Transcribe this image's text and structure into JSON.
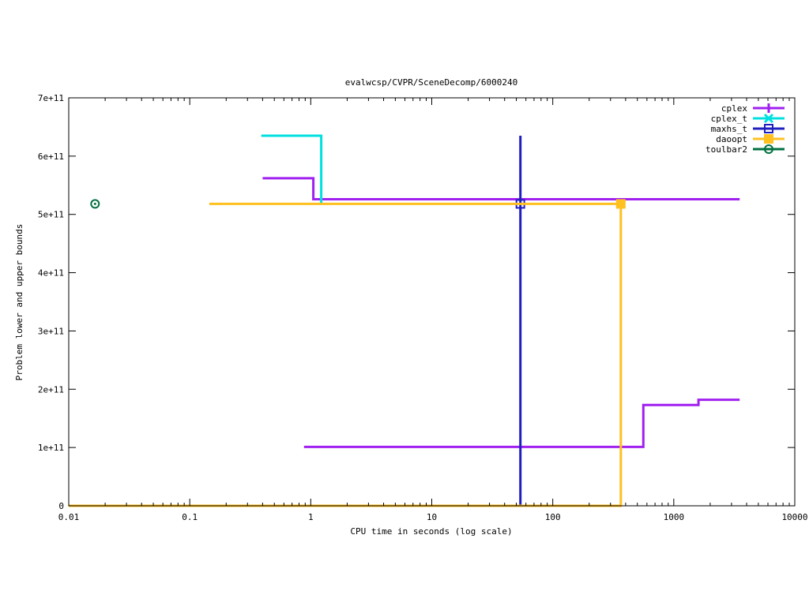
{
  "chart_data": {
    "type": "line",
    "title": "evalwcsp/CVPR/SceneDecomp/6000240",
    "xlabel": "CPU time in seconds (log scale)",
    "ylabel": "Problem lower and upper bounds",
    "xscale": "log",
    "xlim": [
      0.01,
      10000
    ],
    "ylim": [
      0,
      700000000000
    ],
    "grid": false,
    "legend_position": "top-right",
    "x_ticks": [
      {
        "value": 0.01,
        "label": "0.01"
      },
      {
        "value": 0.1,
        "label": "0.1"
      },
      {
        "value": 1,
        "label": "1"
      },
      {
        "value": 10,
        "label": "10"
      },
      {
        "value": 100,
        "label": "100"
      },
      {
        "value": 1000,
        "label": "1000"
      },
      {
        "value": 10000,
        "label": "10000"
      }
    ],
    "y_ticks": [
      {
        "value": 0,
        "label": "0"
      },
      {
        "value": 100000000000,
        "label": "1e+11"
      },
      {
        "value": 200000000000,
        "label": "2e+11"
      },
      {
        "value": 300000000000,
        "label": "3e+11"
      },
      {
        "value": 400000000000,
        "label": "4e+11"
      },
      {
        "value": 500000000000,
        "label": "5e+11"
      },
      {
        "value": 600000000000,
        "label": "6e+11"
      },
      {
        "value": 700000000000,
        "label": "7e+11"
      }
    ],
    "series": [
      {
        "name": "cplex",
        "color": "#a020f0",
        "marker": "plus",
        "lines": [
          [
            [
              0.4,
              562000000000
            ],
            [
              1.05,
              562000000000
            ],
            [
              1.05,
              526000000000
            ],
            [
              3500,
              526000000000
            ]
          ],
          [
            [
              0.88,
              101000000000
            ],
            [
              560,
              101000000000
            ],
            [
              560,
              173000000000
            ],
            [
              1600,
              173000000000
            ],
            [
              1600,
              182000000000
            ],
            [
              3500,
              182000000000
            ]
          ]
        ],
        "markers": []
      },
      {
        "name": "cplex_t",
        "color": "#00e0e0",
        "marker": "cross",
        "lines": [
          [
            [
              0.39,
              635000000000
            ],
            [
              1.22,
              635000000000
            ],
            [
              1.22,
              518000000000
            ]
          ]
        ],
        "markers": []
      },
      {
        "name": "maxhs_t",
        "color": "#1f1fbf",
        "marker": "open-square",
        "lines": [
          [
            [
              54,
              0
            ],
            [
              54,
              635000000000
            ]
          ]
        ],
        "markers": [
          [
            54,
            518000000000
          ]
        ]
      },
      {
        "name": "daoopt",
        "color": "#ffc020",
        "marker": "filled-square",
        "lines": [
          [
            [
              0.01,
              0
            ],
            [
              365,
              0
            ],
            [
              365,
              518000000000
            ]
          ],
          [
            [
              0.145,
              518000000000
            ],
            [
              365,
              518000000000
            ]
          ]
        ],
        "markers": [
          [
            365,
            518000000000
          ]
        ]
      },
      {
        "name": "toulbar2",
        "color": "#007040",
        "marker": "open-circle",
        "lines": [],
        "markers": [
          [
            0.0165,
            518000000000
          ]
        ]
      }
    ]
  }
}
